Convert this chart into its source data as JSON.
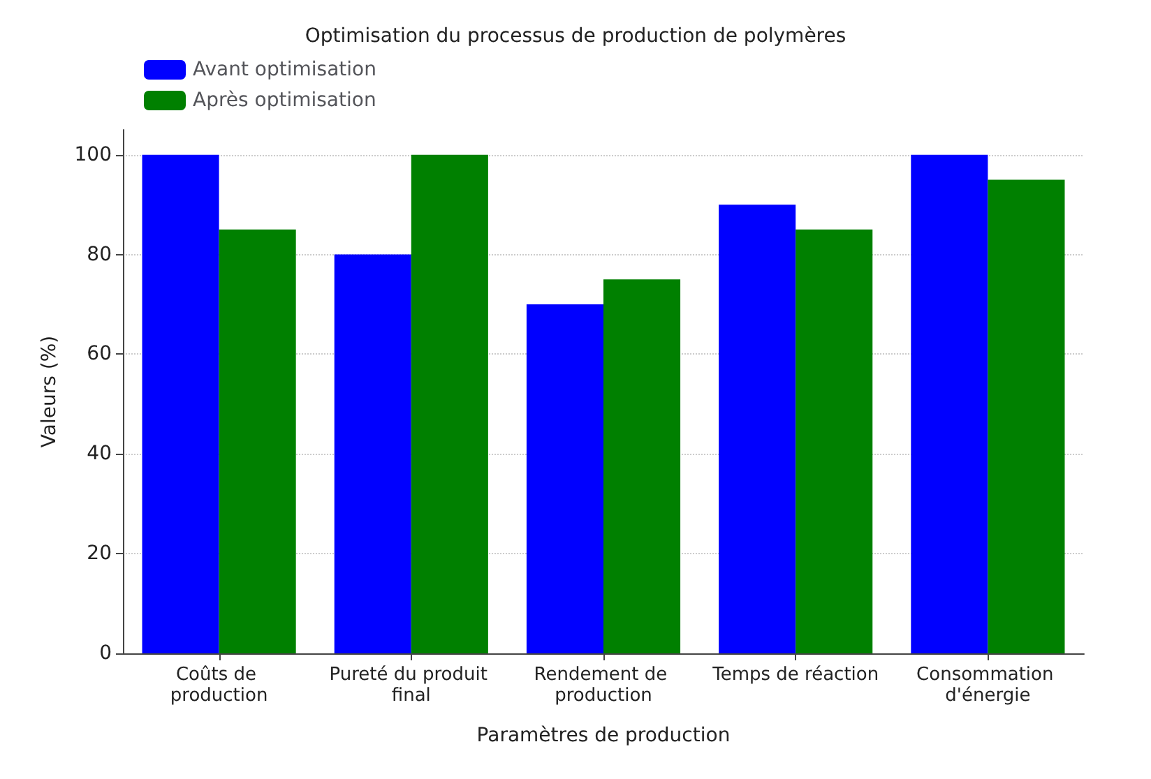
{
  "chart_data": {
    "type": "bar",
    "title": "Optimisation du processus de production de polymères",
    "xlabel": "Paramètres de production",
    "ylabel": "Valeurs (%)",
    "categories": [
      "Coûts de production",
      "Pureté du produit final",
      "Rendement de production",
      "Temps de réaction",
      "Consommation d'énergie"
    ],
    "series": [
      {
        "name": "Avant optimisation",
        "color": "#0000ff",
        "values": [
          100,
          80,
          70,
          90,
          100
        ]
      },
      {
        "name": "Après optimisation",
        "color": "#008000",
        "values": [
          85,
          100,
          75,
          85,
          95
        ]
      }
    ],
    "ylim": [
      0,
      105
    ],
    "yticks": [
      0,
      20,
      40,
      60,
      80,
      100
    ],
    "grid": "y",
    "legend": "top left"
  }
}
